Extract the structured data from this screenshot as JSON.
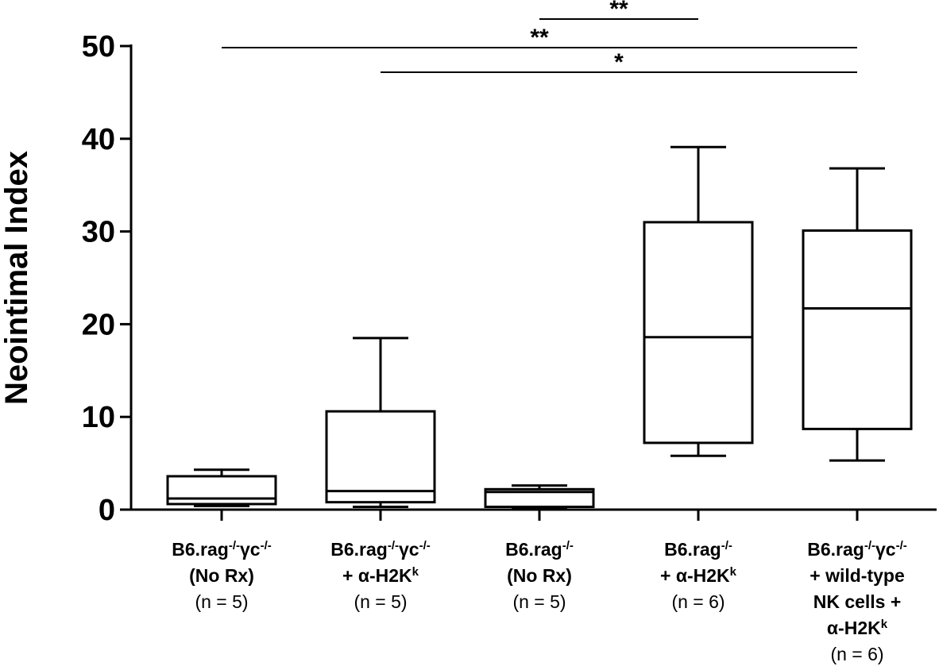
{
  "chart_data": {
    "type": "box",
    "ylabel": "Neointimal Index",
    "ylim": [
      0,
      50
    ],
    "yticks": [
      "0",
      "10",
      "20",
      "30",
      "40",
      "50"
    ],
    "groups": [
      {
        "label_lines": [
          [
            {
              "t": "B6.rag"
            },
            {
              "t": "-/-",
              "sup": true
            },
            {
              "t": "γc"
            },
            {
              "t": "-/-",
              "sup": true
            }
          ],
          [
            {
              "t": "(No Rx)"
            }
          ]
        ],
        "n_label": "(n = 5)",
        "min": 0.4,
        "q1": 0.6,
        "median": 1.2,
        "q3": 3.6,
        "max": 4.3
      },
      {
        "label_lines": [
          [
            {
              "t": "B6.rag"
            },
            {
              "t": "-/-",
              "sup": true
            },
            {
              "t": "γc"
            },
            {
              "t": "-/-",
              "sup": true
            }
          ],
          [
            {
              "t": "+ α-H2K"
            },
            {
              "t": "k",
              "sup": true
            }
          ]
        ],
        "n_label": "(n = 5)",
        "min": 0.3,
        "q1": 0.8,
        "median": 2.0,
        "q3": 10.6,
        "max": 18.5
      },
      {
        "label_lines": [
          [
            {
              "t": "B6.rag"
            },
            {
              "t": "-/-",
              "sup": true
            }
          ],
          [
            {
              "t": "(No Rx)"
            }
          ]
        ],
        "n_label": "(n = 5)",
        "min": 0.2,
        "q1": 0.3,
        "median": 1.9,
        "q3": 2.2,
        "max": 2.6
      },
      {
        "label_lines": [
          [
            {
              "t": "B6.rag"
            },
            {
              "t": "-/-",
              "sup": true
            }
          ],
          [
            {
              "t": "+ α-H2K"
            },
            {
              "t": "k",
              "sup": true
            }
          ]
        ],
        "n_label": "(n = 6)",
        "min": 5.8,
        "q1": 7.2,
        "median": 18.6,
        "q3": 31.0,
        "max": 39.1
      },
      {
        "label_lines": [
          [
            {
              "t": "B6.rag"
            },
            {
              "t": "-/-",
              "sup": true
            },
            {
              "t": "γc"
            },
            {
              "t": "-/-",
              "sup": true
            }
          ],
          [
            {
              "t": "+ wild-type"
            }
          ],
          [
            {
              "t": "NK cells +"
            }
          ],
          [
            {
              "t": "α-H2K"
            },
            {
              "t": "k",
              "sup": true
            }
          ]
        ],
        "n_label": "(n = 6)",
        "min": 5.3,
        "q1": 8.7,
        "median": 21.7,
        "q3": 30.1,
        "max": 36.8
      }
    ],
    "significance": [
      {
        "from_group": 3,
        "to_group": 4,
        "label": "**"
      },
      {
        "from_group": 1,
        "to_group": 5,
        "label": "**"
      },
      {
        "from_group": 2,
        "to_group": 5,
        "label": "*"
      }
    ]
  }
}
